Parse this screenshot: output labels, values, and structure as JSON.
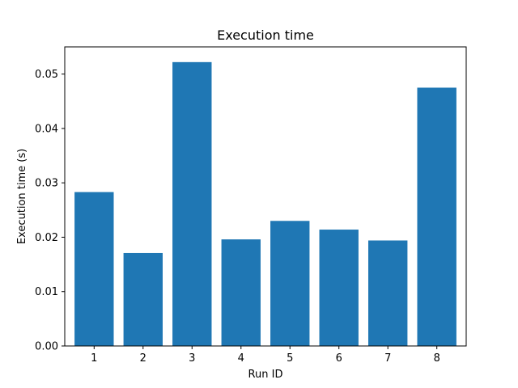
{
  "chart_data": {
    "type": "bar",
    "title": "Execution time",
    "xlabel": "Run ID",
    "ylabel": "Execution time (s)",
    "categories": [
      "1",
      "2",
      "3",
      "4",
      "5",
      "6",
      "7",
      "8"
    ],
    "values": [
      0.0283,
      0.0171,
      0.0522,
      0.0196,
      0.023,
      0.0214,
      0.0194,
      0.0475
    ],
    "ylim": [
      0,
      0.055
    ],
    "yticks": [
      0.0,
      0.01,
      0.02,
      0.03,
      0.04,
      0.05
    ],
    "ytick_labels": [
      "0.00",
      "0.01",
      "0.02",
      "0.03",
      "0.04",
      "0.05"
    ],
    "bar_color": "#1f77b4",
    "grid": false,
    "legend": false
  }
}
